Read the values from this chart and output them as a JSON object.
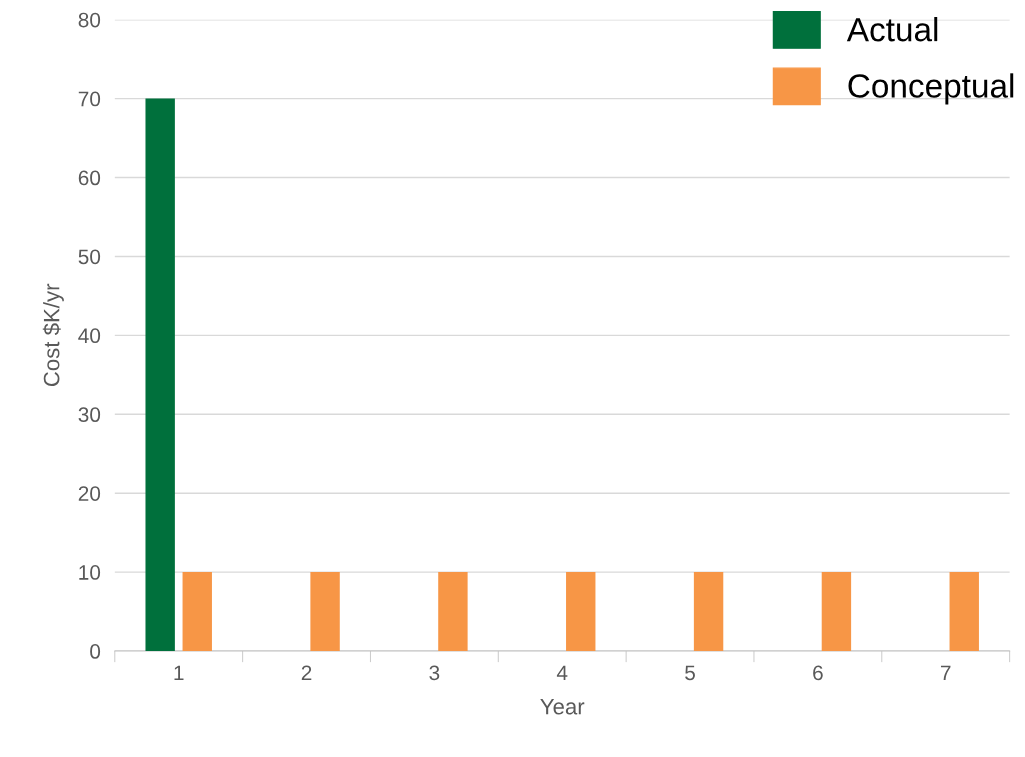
{
  "chart_data": {
    "type": "bar",
    "xlabel": "Year",
    "ylabel": "Cost $K/yr",
    "categories": [
      "1",
      "2",
      "3",
      "4",
      "5",
      "6",
      "7"
    ],
    "series": [
      {
        "name": "Actual",
        "color": "#00703c",
        "values": [
          70,
          null,
          null,
          null,
          null,
          null,
          null
        ]
      },
      {
        "name": "Conceptual",
        "color": "#f79646",
        "values": [
          10,
          10,
          10,
          10,
          10,
          10,
          10
        ]
      }
    ],
    "ylim": [
      0,
      80
    ],
    "yticks": [
      0,
      10,
      20,
      30,
      40,
      50,
      60,
      70,
      80
    ],
    "grid": "y",
    "legend": "top right"
  }
}
